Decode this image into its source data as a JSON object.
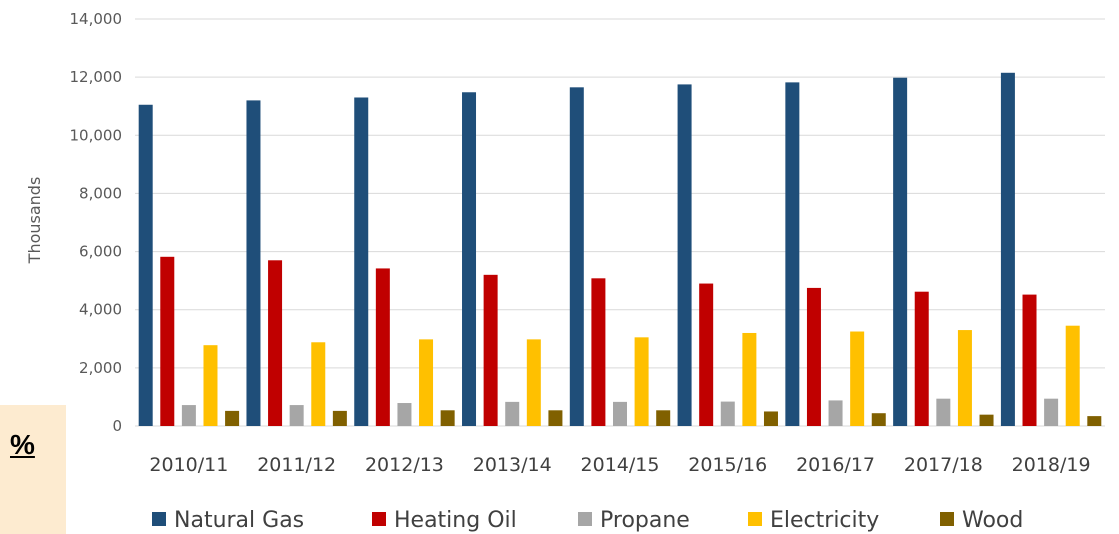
{
  "chart_data": {
    "type": "bar",
    "title": "",
    "xlabel": "",
    "ylabel": "Thousands",
    "ylim": [
      0,
      14000
    ],
    "yticks": [
      0,
      2000,
      4000,
      6000,
      8000,
      10000,
      12000,
      14000
    ],
    "ytick_labels": [
      "0",
      "2,000",
      "4,000",
      "6,000",
      "8,000",
      "10,000",
      "12,000",
      "14,000"
    ],
    "grid": true,
    "legend_position": "bottom",
    "categories": [
      "2010/11",
      "2011/12",
      "2012/13",
      "2013/14",
      "2014/15",
      "2015/16",
      "2016/17",
      "2017/18",
      "2018/19"
    ],
    "series": [
      {
        "name": "Natural Gas",
        "color": "#1f4e79",
        "values": [
          11050,
          11200,
          11300,
          11480,
          11650,
          11750,
          11820,
          11980,
          12150
        ]
      },
      {
        "name": "Heating Oil",
        "color": "#c00000",
        "values": [
          5820,
          5700,
          5420,
          5200,
          5080,
          4900,
          4750,
          4620,
          4520
        ]
      },
      {
        "name": "Propane",
        "color": "#a6a6a6",
        "values": [
          720,
          720,
          790,
          830,
          830,
          840,
          880,
          940,
          940
        ]
      },
      {
        "name": "Electricity",
        "color": "#ffc000",
        "values": [
          2780,
          2880,
          2980,
          2980,
          3050,
          3200,
          3250,
          3300,
          3450
        ]
      },
      {
        "name": "Wood",
        "color": "#806000",
        "values": [
          520,
          520,
          540,
          540,
          540,
          500,
          440,
          390,
          340
        ]
      }
    ]
  },
  "side_box": {
    "text": "%"
  }
}
